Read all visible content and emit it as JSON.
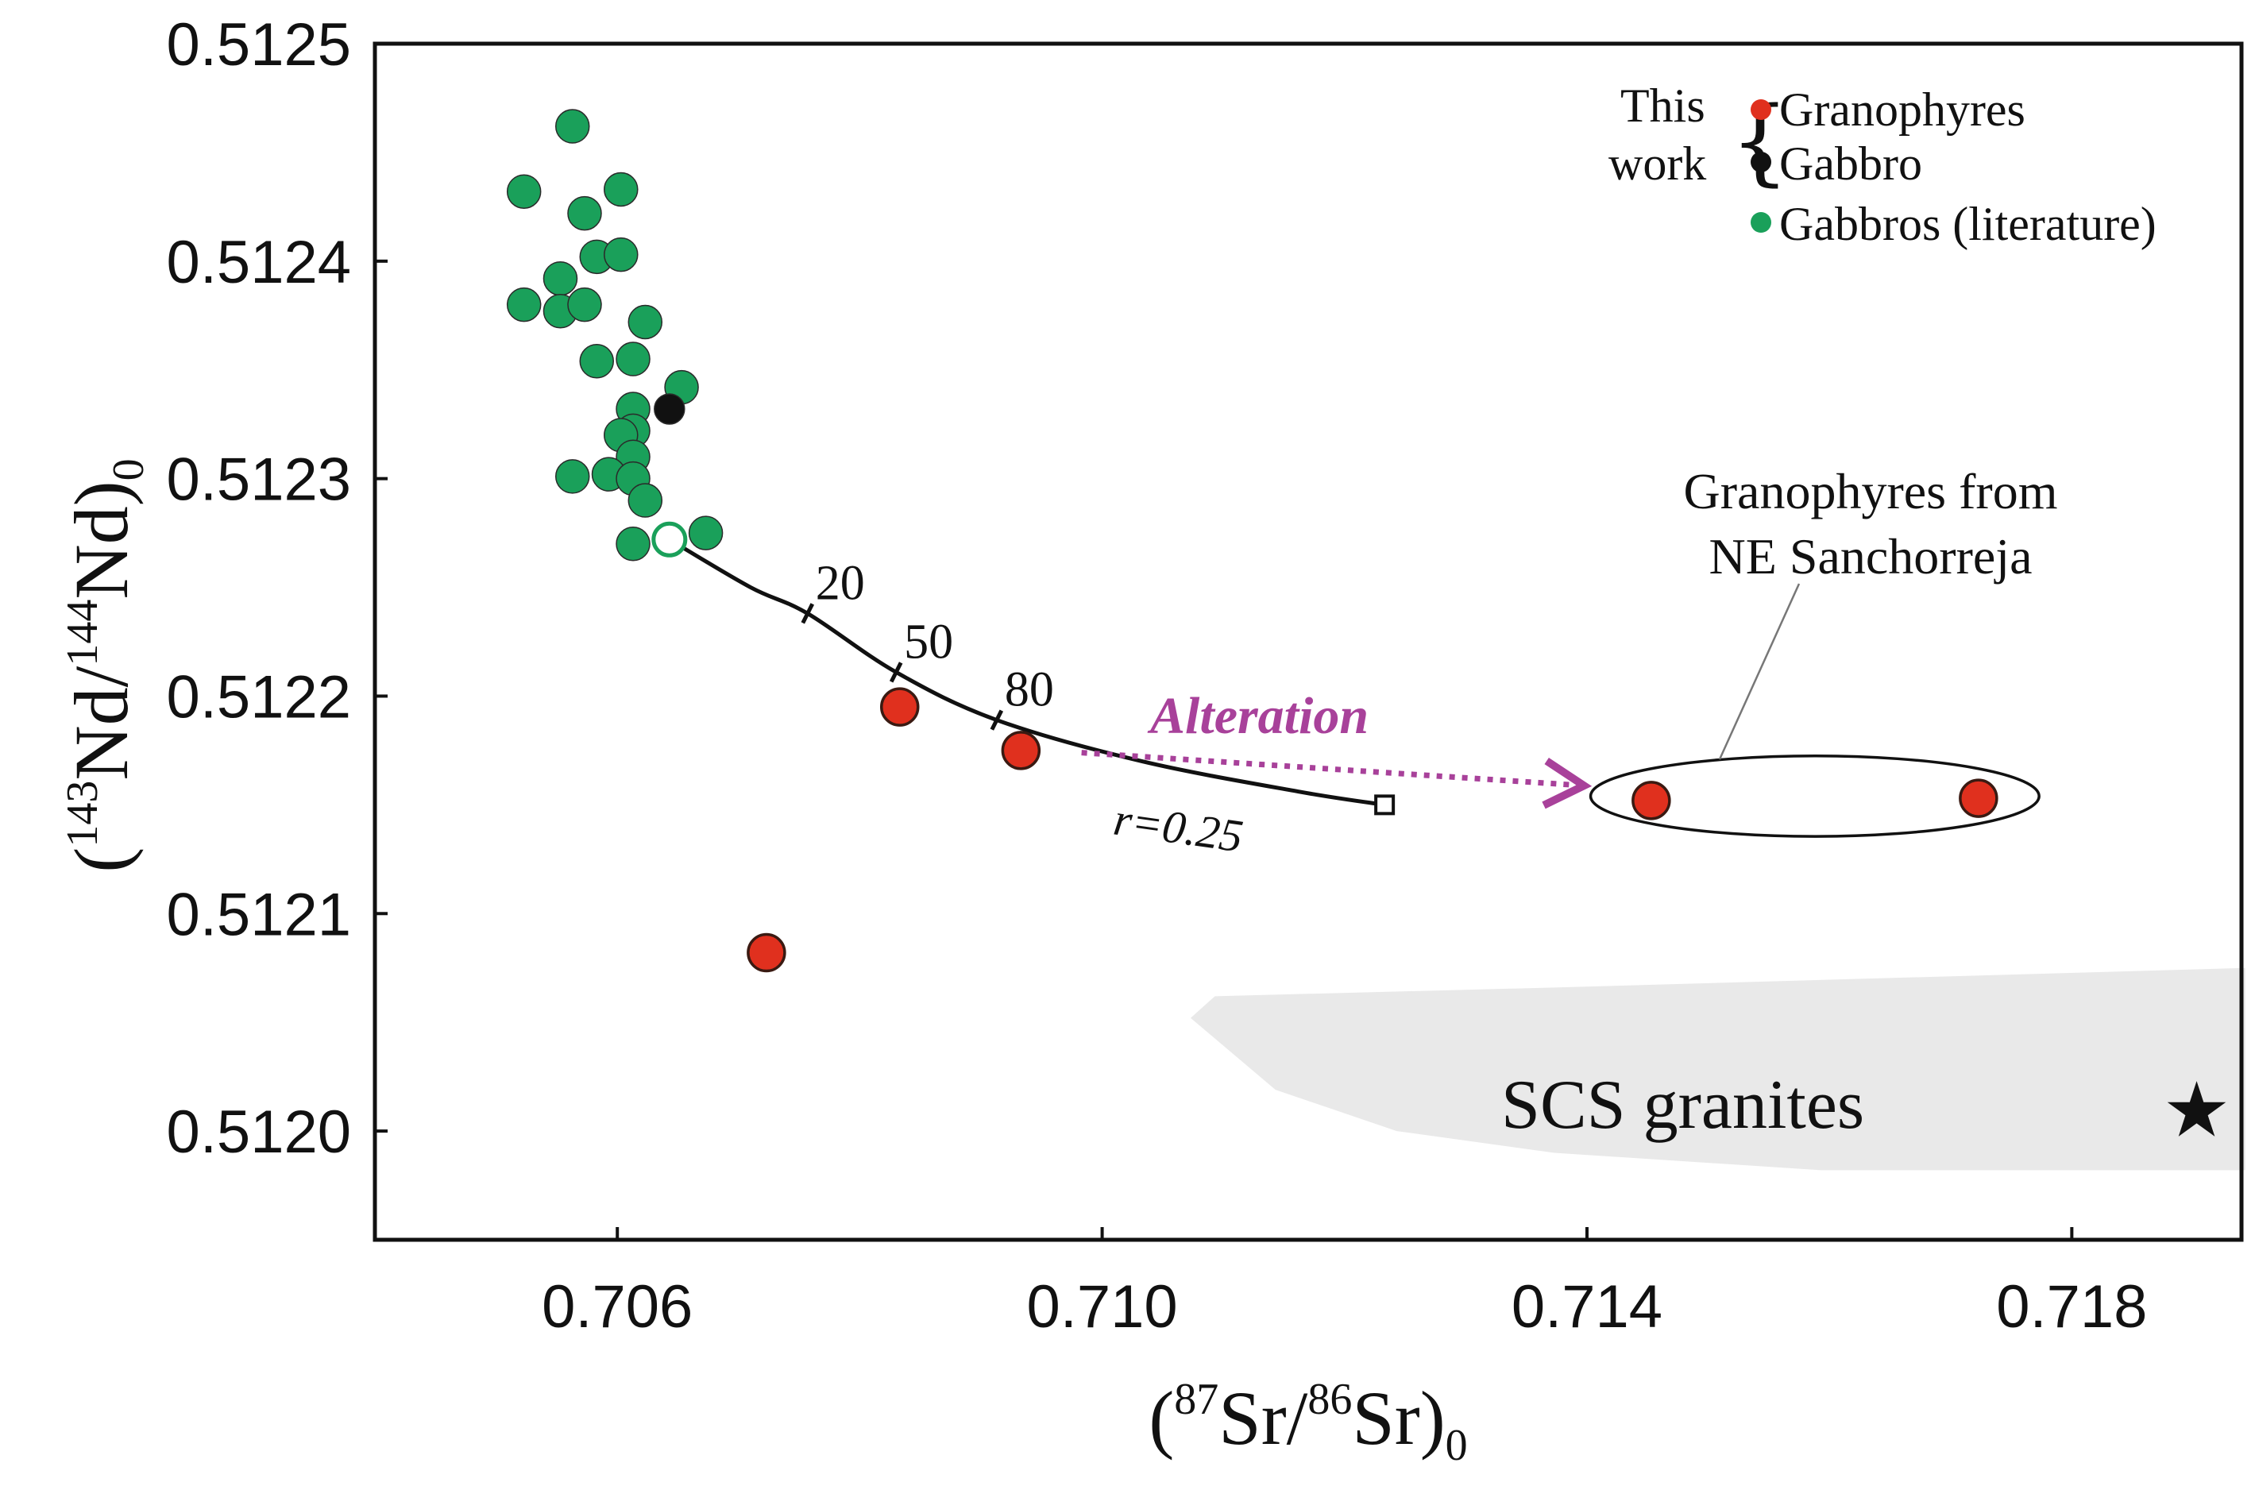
{
  "chart_data": {
    "type": "scatter",
    "xlabel_parts": [
      "(",
      "87",
      "Sr/",
      "86",
      "Sr)",
      "0"
    ],
    "ylabel_parts": [
      "(",
      "143",
      "Nd/",
      "144",
      "Nd)",
      "0"
    ],
    "xlim": [
      0.704,
      0.7194
    ],
    "ylim": [
      0.51195,
      0.5125
    ],
    "xticks": [
      {
        "value": 0.706,
        "label": "0.706"
      },
      {
        "value": 0.71,
        "label": "0.710"
      },
      {
        "value": 0.714,
        "label": "0.714"
      },
      {
        "value": 0.718,
        "label": "0.718"
      }
    ],
    "yticks": [
      {
        "value": 0.5125,
        "label": "0.5125"
      },
      {
        "value": 0.5124,
        "label": "0.5124"
      },
      {
        "value": 0.5123,
        "label": "0.5123"
      },
      {
        "value": 0.5122,
        "label": "0.5122"
      },
      {
        "value": 0.5121,
        "label": "0.5121"
      },
      {
        "value": 0.512,
        "label": "0.5120"
      }
    ],
    "grid": false,
    "legend": {
      "position": "top-right",
      "group_label_line1": "This",
      "group_label_line2": "work",
      "entries": [
        {
          "label": "Granophyres",
          "color": "#e0301e"
        },
        {
          "label": "Gabbro",
          "color": "#111111"
        },
        {
          "label": "Gabbros (literature)",
          "color": "#1aa05a"
        }
      ]
    },
    "series": [
      {
        "name": "Granophyres",
        "color": "#e0301e",
        "points": [
          {
            "x": 0.70833,
            "y": 0.512195
          },
          {
            "x": 0.70933,
            "y": 0.512175
          },
          {
            "x": 0.70723,
            "y": 0.512082
          },
          {
            "x": 0.71453,
            "y": 0.512152
          },
          {
            "x": 0.71723,
            "y": 0.512153
          }
        ]
      },
      {
        "name": "Gabbro",
        "color": "#111111",
        "points": [
          {
            "x": 0.70643,
            "y": 0.512332
          }
        ]
      },
      {
        "name": "Gabbros (literature)",
        "color": "#1aa05a",
        "points": [
          {
            "x": 0.70563,
            "y": 0.512462
          },
          {
            "x": 0.70523,
            "y": 0.512432
          },
          {
            "x": 0.70603,
            "y": 0.512433
          },
          {
            "x": 0.70573,
            "y": 0.512422
          },
          {
            "x": 0.70583,
            "y": 0.512402
          },
          {
            "x": 0.70603,
            "y": 0.512403
          },
          {
            "x": 0.70553,
            "y": 0.512392
          },
          {
            "x": 0.70523,
            "y": 0.51238
          },
          {
            "x": 0.70553,
            "y": 0.512377
          },
          {
            "x": 0.70573,
            "y": 0.51238
          },
          {
            "x": 0.70623,
            "y": 0.512372
          },
          {
            "x": 0.70583,
            "y": 0.512354
          },
          {
            "x": 0.70613,
            "y": 0.512355
          },
          {
            "x": 0.70653,
            "y": 0.512342
          },
          {
            "x": 0.70613,
            "y": 0.512332
          },
          {
            "x": 0.70613,
            "y": 0.512322
          },
          {
            "x": 0.70603,
            "y": 0.51232
          },
          {
            "x": 0.70613,
            "y": 0.51231
          },
          {
            "x": 0.70593,
            "y": 0.512302
          },
          {
            "x": 0.70563,
            "y": 0.512301
          },
          {
            "x": 0.70613,
            "y": 0.5123
          },
          {
            "x": 0.70623,
            "y": 0.51229
          },
          {
            "x": 0.70613,
            "y": 0.51227
          },
          {
            "x": 0.70673,
            "y": 0.512275
          }
        ]
      }
    ],
    "mixing_curve": {
      "label": "r=0.25",
      "start": {
        "x": 0.70643,
        "y": 0.512272
      },
      "end": {
        "x": 0.71233,
        "y": 0.51215
      },
      "points": [
        {
          "x": 0.70643,
          "y": 0.512272
        },
        {
          "x": 0.7071,
          "y": 0.51225
        },
        {
          "x": 0.70757,
          "y": 0.512238
        },
        {
          "x": 0.7083,
          "y": 0.512211
        },
        {
          "x": 0.70913,
          "y": 0.512189
        },
        {
          "x": 0.71033,
          "y": 0.51217
        },
        {
          "x": 0.71163,
          "y": 0.512156
        },
        {
          "x": 0.71233,
          "y": 0.51215
        }
      ],
      "ticks": [
        {
          "label": "20",
          "x": 0.70757,
          "y": 0.512238
        },
        {
          "label": "50",
          "x": 0.7083,
          "y": 0.512211
        },
        {
          "label": "80",
          "x": 0.70913,
          "y": 0.512189
        }
      ]
    },
    "annotations": {
      "alteration_label": "Alteration",
      "alteration_arrow": {
        "from": {
          "x": 0.70983,
          "y": 0.512174
        },
        "to": {
          "x": 0.71393,
          "y": 0.512159
        }
      },
      "group_label_line1": "Granophyres from",
      "group_label_line2": "NE Sanchorreja",
      "group_ellipse": {
        "cx": 0.71588,
        "cy": 0.512154,
        "rx": 0.00185,
        "ry": 1.85e-05
      },
      "field_label": "SCS granites",
      "field_polygon": [
        {
          "x": 0.71243,
          "y": 0.512
        },
        {
          "x": 0.71373,
          "y": 0.51199
        },
        {
          "x": 0.71593,
          "y": 0.511982
        },
        {
          "x": 0.71943,
          "y": 0.511982
        },
        {
          "x": 0.71943,
          "y": 0.512075
        },
        {
          "x": 0.71373,
          "y": 0.512066
        },
        {
          "x": 0.71093,
          "y": 0.512062
        },
        {
          "x": 0.71073,
          "y": 0.512052
        },
        {
          "x": 0.71143,
          "y": 0.512019
        }
      ],
      "star": {
        "x": 0.71903,
        "y": 0.51201
      }
    }
  }
}
